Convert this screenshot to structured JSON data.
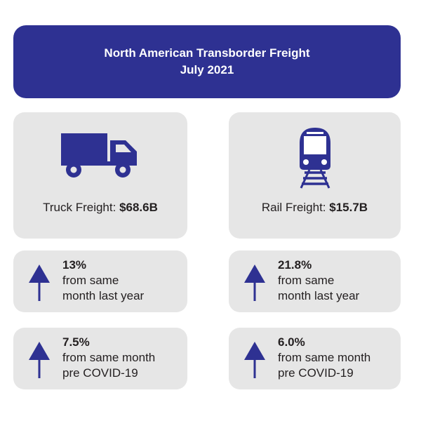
{
  "header": {
    "title_line1": "North American Transborder Freight",
    "title_line2": "July 2021"
  },
  "colors": {
    "accent": "#2e3192",
    "card_bg": "#e6e6e6",
    "text": "#231f20"
  },
  "truck": {
    "icon": "truck-icon",
    "label": "Truck Freight: ",
    "value": "$68.6B",
    "yoy": {
      "icon": "arrow-up-icon",
      "value": "13%",
      "line2": "from same",
      "line3": "month last year"
    },
    "precovid": {
      "icon": "arrow-up-icon",
      "value": "7.5%",
      "line2": "from same month",
      "line3": "pre COVID-19"
    }
  },
  "rail": {
    "icon": "train-icon",
    "label": "Rail Freight: ",
    "value": "$15.7B",
    "yoy": {
      "icon": "arrow-up-icon",
      "value": "21.8%",
      "line2": "from same",
      "line3": "month last year"
    },
    "precovid": {
      "icon": "arrow-up-icon",
      "value": "6.0%",
      "line2": "from same month",
      "line3": "pre COVID-19"
    }
  }
}
